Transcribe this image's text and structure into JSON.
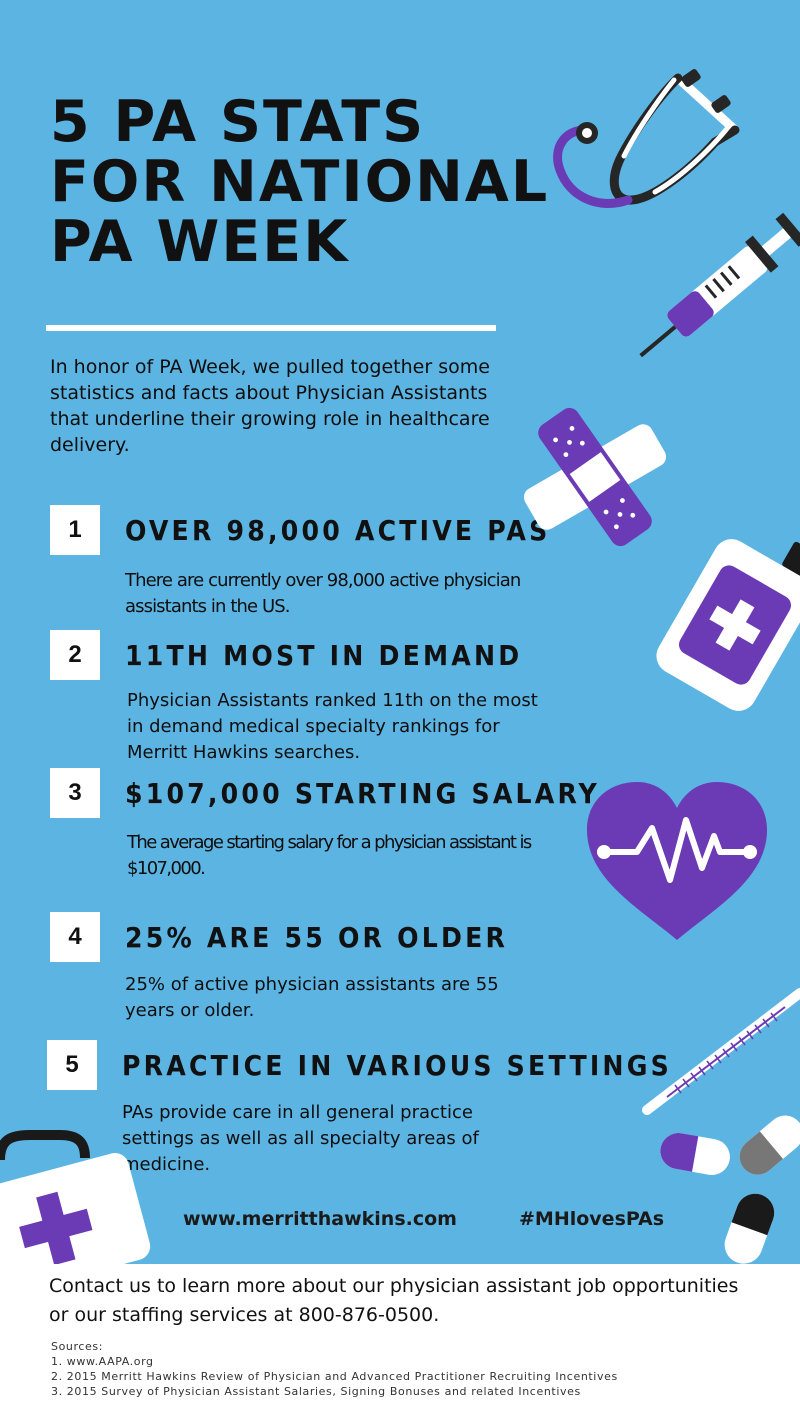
{
  "title_lines": [
    "5 PA STATS",
    "FOR NATIONAL",
    "PA WEEK"
  ],
  "intro": "In honor of PA Week, we pulled together some statistics and facts about Physician Assistants that underline their growing role in healthcare delivery.",
  "stats": [
    {
      "number": "1",
      "heading": "OVER 98,000 ACTIVE PAS",
      "body": "There are currently over 98,000 active physician assistants in the US."
    },
    {
      "number": "2",
      "heading": "11TH MOST IN DEMAND",
      "body": "Physician Assistants ranked 11th on the most in demand medical specialty rankings for Merritt Hawkins searches."
    },
    {
      "number": "3",
      "heading": "$107,000 STARTING SALARY",
      "body": "The average starting salary for a physician assistant is $107,000."
    },
    {
      "number": "4",
      "heading": "25% ARE 55 OR OLDER",
      "body": "25% of active physician assistants are 55 years or older."
    },
    {
      "number": "5",
      "heading": "PRACTICE IN VARIOUS SETTINGS",
      "body": "PAs provide care in all general practice settings as well as all specialty areas of medicine."
    }
  ],
  "footer": {
    "website": "www.merritthawkins.com",
    "hashtag": "#MHlovesPAs"
  },
  "contact": "Contact us to learn more about our physician assistant job opportunities or our staffing services at 800-876-0500.",
  "sources": {
    "label": "Sources:",
    "items": [
      "1. www.AAPA.org",
      "2. 2015 Merritt Hawkins Review of Physician and Advanced Practitioner Recruiting Incentives",
      "3. 2015 Survey of Physician Assistant Salaries, Signing Bonuses and related Incentives"
    ]
  },
  "colors": {
    "background": "#5cb4e2",
    "accent": "#6a3bb5",
    "ink": "#111111",
    "white": "#ffffff",
    "dark": "#262626"
  },
  "icons": [
    "stethoscope-icon",
    "syringe-icon",
    "bandage-icon",
    "medicine-bottle-icon",
    "heartbeat-icon",
    "thermometer-icon",
    "first-aid-kit-icon",
    "pill-icon"
  ]
}
